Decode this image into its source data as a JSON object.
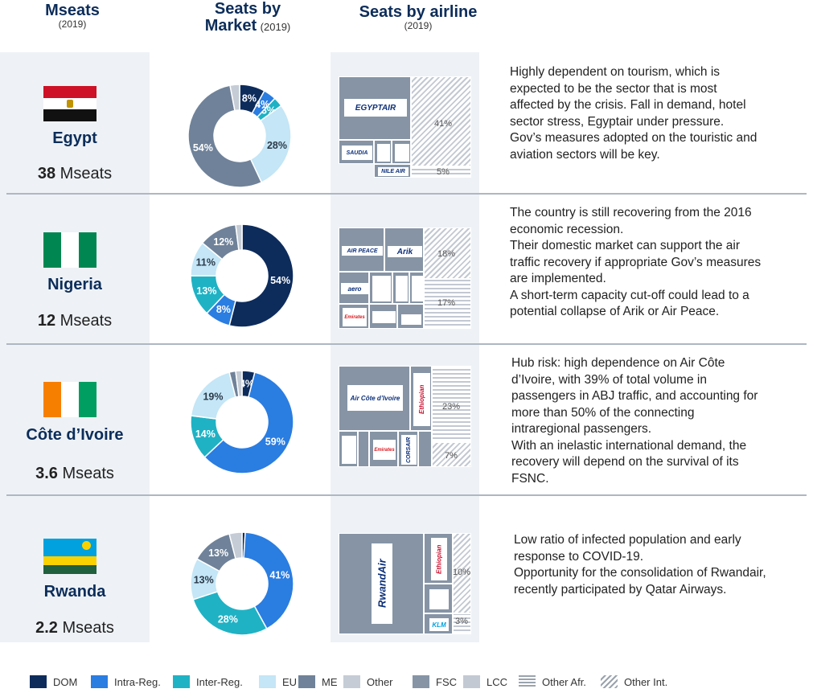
{
  "headers": {
    "mseats": {
      "title": "Mseats",
      "year": "(2019)"
    },
    "market": {
      "title_1": "Seats by",
      "title_2": "Market",
      "year": "(2019)"
    },
    "airline": {
      "title": "Seats by airline",
      "year": "(2019)"
    }
  },
  "colors": {
    "DOM": "#0d2c5c",
    "Intra-Reg.": "#2a7de1",
    "Inter-Reg.": "#1fb2c4",
    "EU": "#c4e6f6",
    "ME": "#6f8299",
    "Other": "#c5ccd5",
    "FSC": "#8694a5",
    "LCC": "#c3c9d2"
  },
  "countries": [
    {
      "name": "Egypt",
      "seats_value": "38",
      "seats_unit": "Mseats",
      "note": [
        "Highly dependent on tourism, which is",
        "expected to be the sector that is most",
        "affected by the crisis. Fall in demand, hotel",
        "sector stress, Egyptair under pressure.",
        "Gov’s measures adopted on the touristic and",
        "aviation sectors will be key."
      ],
      "airline_labels": {
        "other_int": "41%",
        "other_afr": "5%"
      },
      "logos": {
        "main": "EGYPTAIR",
        "saudia": "SAUDIA",
        "nile": "NILE AIR"
      }
    },
    {
      "name": "Nigeria",
      "seats_value": "12",
      "seats_unit": "Mseats",
      "note": [
        "The country is still recovering from the 2016",
        "economic recession.",
        "Their domestic market can support the air",
        "traffic recovery if appropriate Gov’s measures",
        "are implemented.",
        "A short-term capacity cut-off could lead to a",
        "potential collapse of Arik or Air Peace."
      ],
      "airline_labels": {
        "other_int": "18%",
        "other_afr": "17%"
      },
      "logos": {
        "airpeace": "AIR PEACE",
        "arik": "Arik",
        "aero": "aero",
        "emirates": "Emirates"
      }
    },
    {
      "name": "Côte d’Ivoire",
      "seats_value": "3.6",
      "seats_unit": "Mseats",
      "note": [
        "Hub risk: high dependence on Air Côte",
        "d’Ivoire, with 39% of total volume in",
        "passengers in ABJ traffic, and  accounting for",
        "more than 50% of the connecting",
        "intraregional passengers.",
        "With an inelastic international demand, the",
        "recovery will depend on the survival of its",
        "FSNC."
      ],
      "airline_labels": {
        "other_int": "23%",
        "other_afr": "7%"
      },
      "logos": {
        "aci": "Air Côte d’Ivoire",
        "ethiopian": "Ethiopian",
        "emirates": "Emirates",
        "corsair": "CORSAIR"
      }
    },
    {
      "name": "Rwanda",
      "seats_value": "2.2",
      "seats_unit": "Mseats",
      "note": [
        "Low ratio of infected population and early",
        "response to COVID-19.",
        "Opportunity for the consolidation of Rwandair,",
        "recently participated by Qatar Airways."
      ],
      "airline_labels": {
        "other_int": "10%",
        "other_afr": "3%"
      },
      "logos": {
        "rwandair": "RwandAir",
        "ethiopian": "Ethiopian",
        "klm": "KLM"
      }
    }
  ],
  "chart_data": [
    {
      "type": "pie",
      "title": "Egypt",
      "categories": [
        "DOM",
        "Intra-Reg.",
        "Inter-Reg.",
        "EU",
        "ME",
        "Other"
      ],
      "values": [
        8,
        4,
        3,
        28,
        54,
        3
      ],
      "labels": [
        "8%",
        "4%",
        "3%",
        "28%",
        "54%",
        ""
      ]
    },
    {
      "type": "pie",
      "title": "Nigeria",
      "categories": [
        "DOM",
        "Intra-Reg.",
        "Inter-Reg.",
        "EU",
        "ME",
        "Other"
      ],
      "values": [
        54,
        8,
        13,
        11,
        12,
        2
      ],
      "labels": [
        "54%",
        "8%",
        "13%",
        "11%",
        "12%",
        ""
      ]
    },
    {
      "type": "pie",
      "title": "Côte d’Ivoire",
      "categories": [
        "DOM",
        "Intra-Reg.",
        "Inter-Reg.",
        "EU",
        "ME",
        "Other"
      ],
      "values": [
        4,
        59,
        14,
        19,
        2,
        2
      ],
      "labels": [
        "4%",
        "59%",
        "14%",
        "19%",
        "",
        ""
      ]
    },
    {
      "type": "pie",
      "title": "Rwanda",
      "categories": [
        "DOM",
        "Intra-Reg.",
        "Inter-Reg.",
        "EU",
        "ME",
        "Other"
      ],
      "values": [
        1,
        41,
        28,
        13,
        13,
        4
      ],
      "labels": [
        "",
        "41%",
        "28%",
        "13%",
        "13%",
        ""
      ]
    }
  ],
  "legend": [
    {
      "label": "DOM",
      "kind": "solid",
      "color": "#0d2c5c"
    },
    {
      "label": "Intra-Reg.",
      "kind": "solid",
      "color": "#2a7de1"
    },
    {
      "label": "Inter-Reg.",
      "kind": "solid",
      "color": "#1fb2c4"
    },
    {
      "label": "EU",
      "kind": "solid",
      "color": "#c4e6f6"
    },
    {
      "label": "ME",
      "kind": "solid",
      "color": "#6f8299"
    },
    {
      "label": "Other",
      "kind": "solid",
      "color": "#c5ccd5"
    },
    {
      "label": "FSC",
      "kind": "solid",
      "color": "#8694a5"
    },
    {
      "label": "LCC",
      "kind": "solid",
      "color": "#c3c9d2"
    },
    {
      "label": "Other Afr.",
      "kind": "hatch-h",
      "color": "#9aa3ae"
    },
    {
      "label": "Other Int.",
      "kind": "hatch-d",
      "color": "#9aa3ae"
    }
  ]
}
